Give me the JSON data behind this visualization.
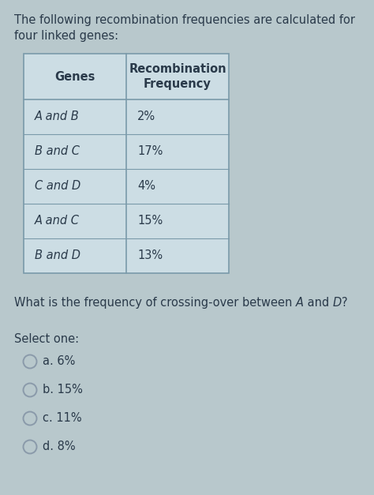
{
  "bg_color": "#b8c8cc",
  "title_line1": "The following recombination frequencies are calculated for",
  "title_line2": "four linked genes:",
  "table_rows": [
    [
      "A and B",
      "2%"
    ],
    [
      "B and C",
      "17%"
    ],
    [
      "C and D",
      "4%"
    ],
    [
      "A and C",
      "15%"
    ],
    [
      "B and D",
      "13%"
    ]
  ],
  "select_label": "Select one:",
  "options": [
    "a. 6%",
    "b. 15%",
    "c. 11%",
    "d. 8%"
  ],
  "table_border_color": "#7a9aaa",
  "table_bg_color": "#ccdde4",
  "text_color": "#2a3a4a",
  "title_fontsize": 10.5,
  "cell_fontsize": 10.5,
  "question_fontsize": 10.5,
  "options_fontsize": 10.5,
  "header_fontsize": 10.5
}
